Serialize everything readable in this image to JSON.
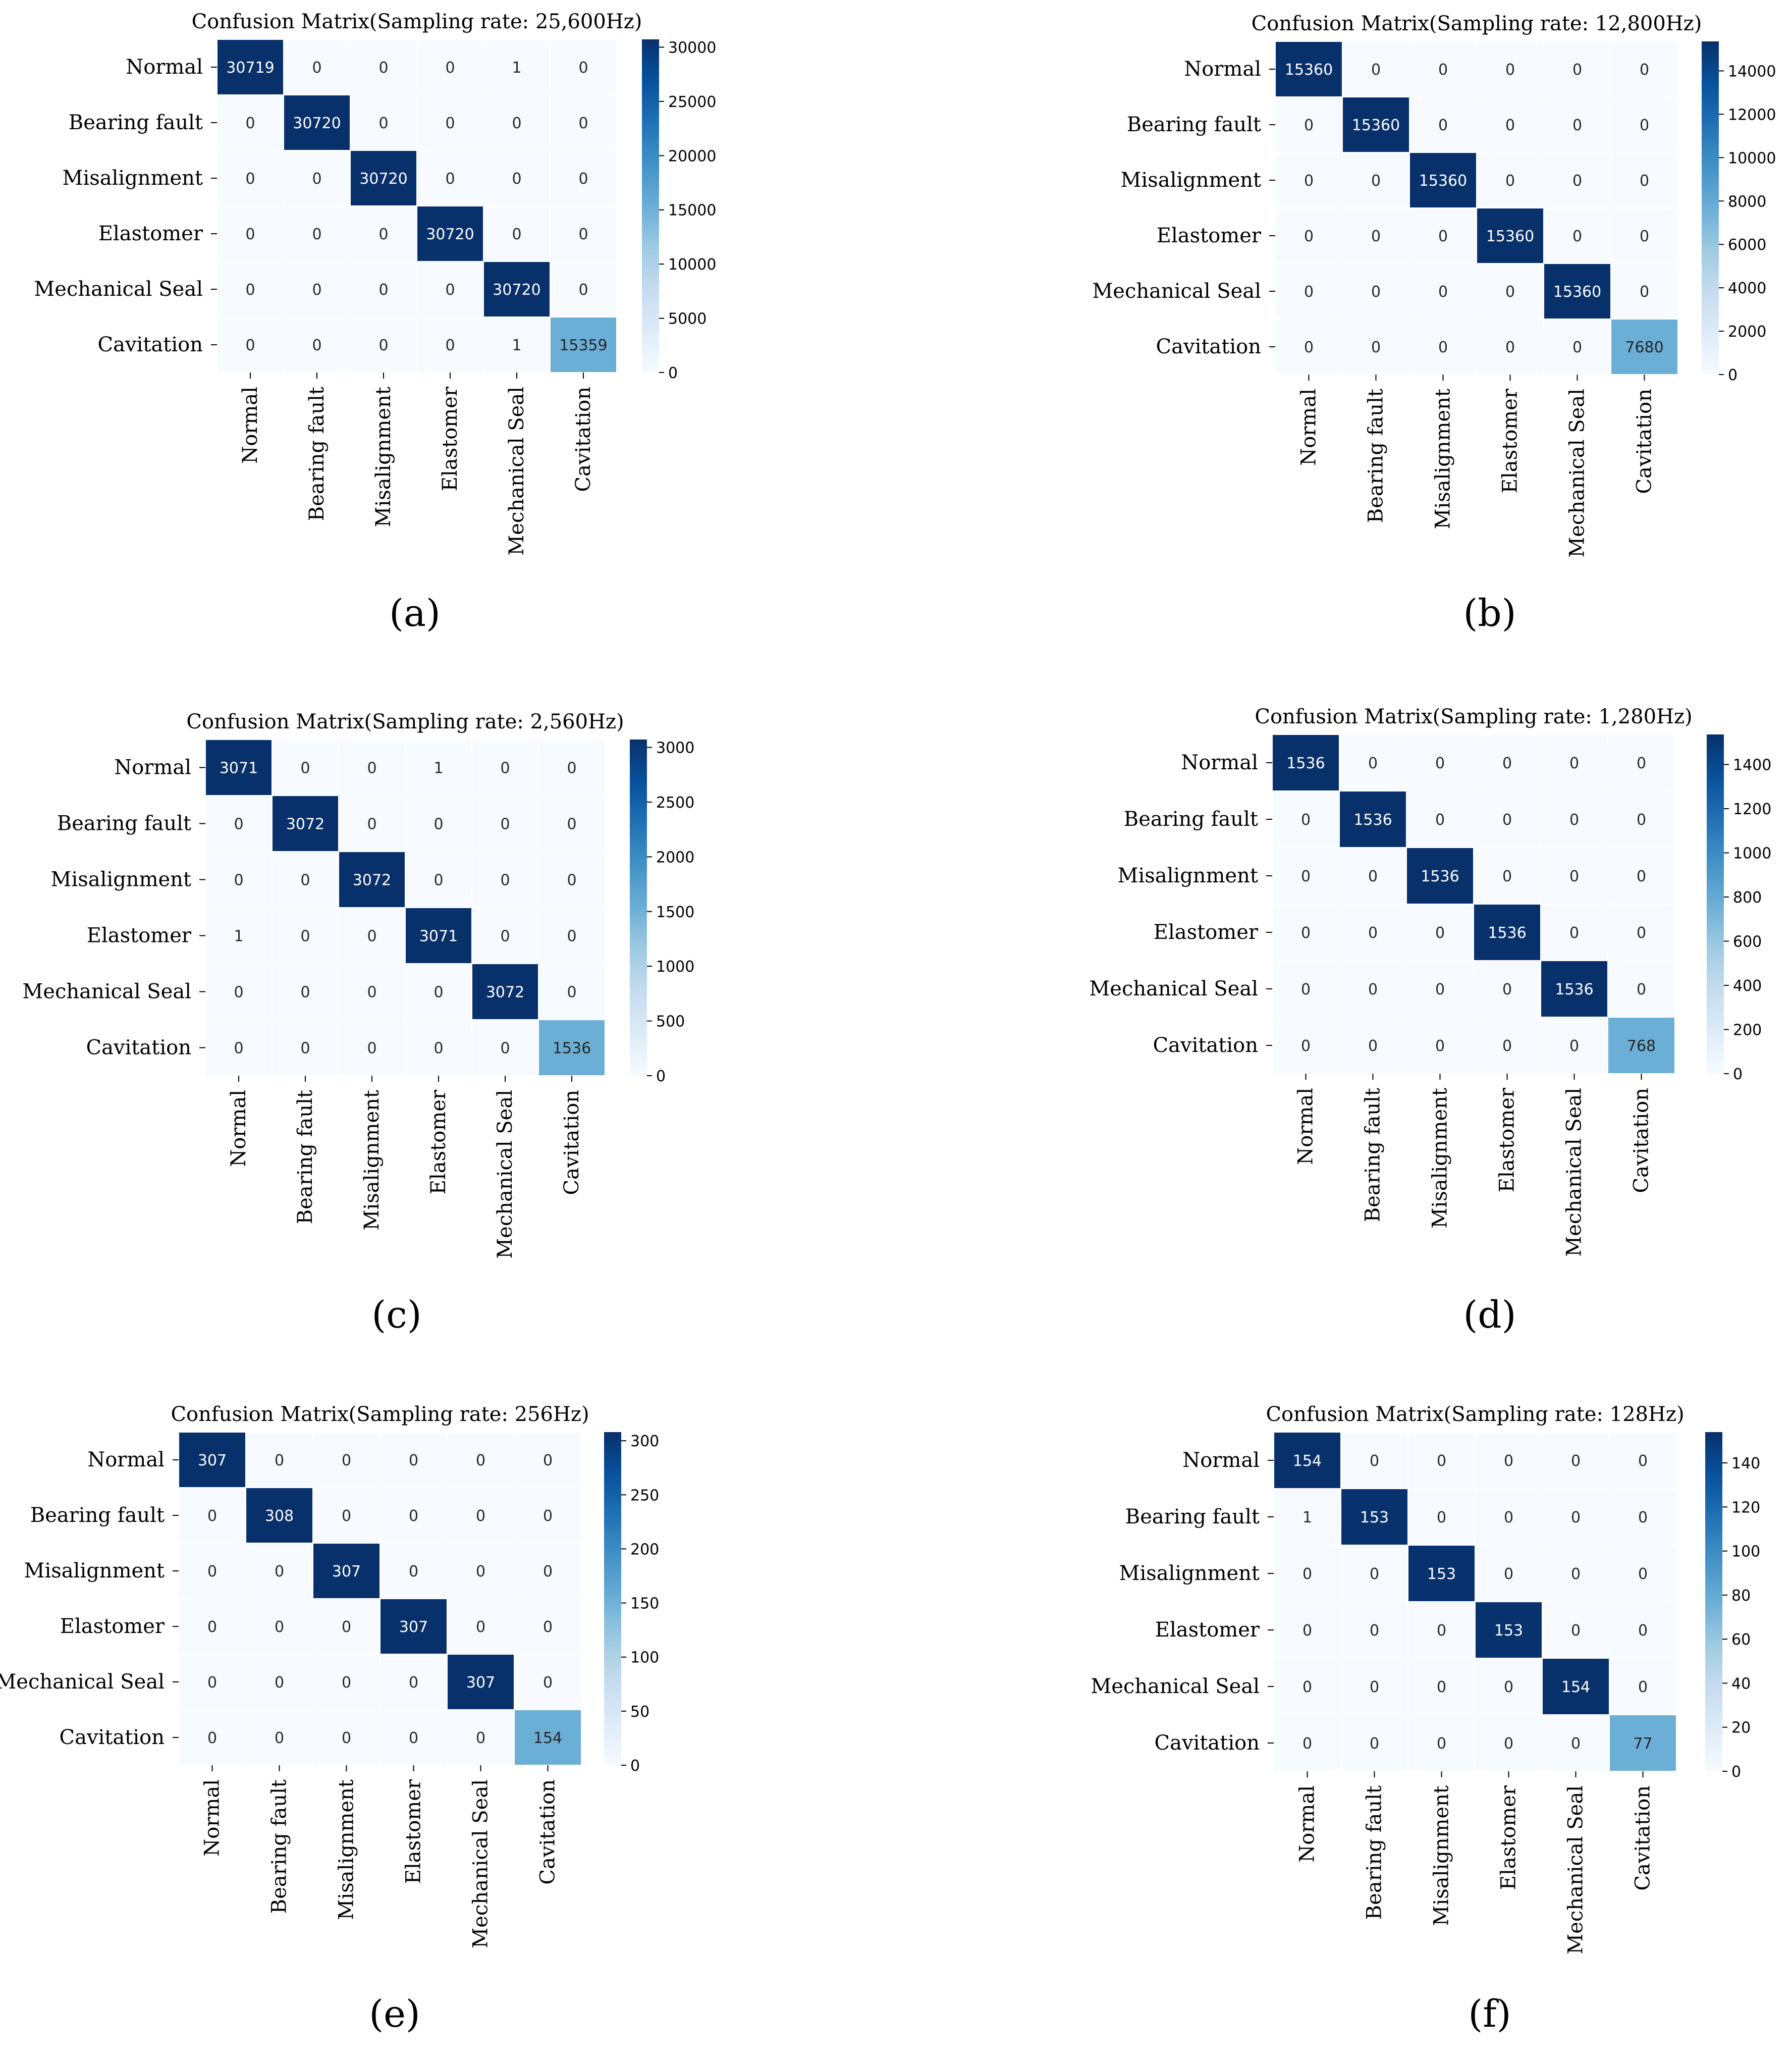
{
  "figure_panel_labels": [
    "(a)",
    "(b)",
    "(c)",
    "(d)",
    "(e)",
    "(f)"
  ],
  "chart_data": [
    {
      "type": "heatmap",
      "panel": "a",
      "title": "Confusion Matrix(Sampling rate: 25,600Hz)",
      "row_labels": [
        "Normal",
        "Bearing fault",
        "Misalignment",
        "Elastomer",
        "Mechanical Seal",
        "Cavitation"
      ],
      "col_labels": [
        "Normal",
        "Bearing fault",
        "Misalignment",
        "Elastomer",
        "Mechanical Seal",
        "Cavitation"
      ],
      "values": [
        [
          30719,
          0,
          0,
          0,
          1,
          0
        ],
        [
          0,
          30720,
          0,
          0,
          0,
          0
        ],
        [
          0,
          0,
          30720,
          0,
          0,
          0
        ],
        [
          0,
          0,
          0,
          30720,
          0,
          0
        ],
        [
          0,
          0,
          0,
          0,
          30720,
          0
        ],
        [
          0,
          0,
          0,
          0,
          1,
          15359
        ]
      ],
      "colorbar": {
        "min": 0,
        "max": 30720,
        "ticks": [
          0,
          5000,
          10000,
          15000,
          20000,
          25000,
          30000
        ]
      },
      "colormap": "Blues"
    },
    {
      "type": "heatmap",
      "panel": "b",
      "title": "Confusion Matrix(Sampling rate: 12,800Hz)",
      "row_labels": [
        "Normal",
        "Bearing fault",
        "Misalignment",
        "Elastomer",
        "Mechanical Seal",
        "Cavitation"
      ],
      "col_labels": [
        "Normal",
        "Bearing fault",
        "Misalignment",
        "Elastomer",
        "Mechanical Seal",
        "Cavitation"
      ],
      "values": [
        [
          15360,
          0,
          0,
          0,
          0,
          0
        ],
        [
          0,
          15360,
          0,
          0,
          0,
          0
        ],
        [
          0,
          0,
          15360,
          0,
          0,
          0
        ],
        [
          0,
          0,
          0,
          15360,
          0,
          0
        ],
        [
          0,
          0,
          0,
          0,
          15360,
          0
        ],
        [
          0,
          0,
          0,
          0,
          0,
          7680
        ]
      ],
      "colorbar": {
        "min": 0,
        "max": 15360,
        "ticks": [
          0,
          2000,
          4000,
          6000,
          8000,
          10000,
          12000,
          14000
        ]
      },
      "colormap": "Blues"
    },
    {
      "type": "heatmap",
      "panel": "c",
      "title": "Confusion Matrix(Sampling rate: 2,560Hz)",
      "row_labels": [
        "Normal",
        "Bearing fault",
        "Misalignment",
        "Elastomer",
        "Mechanical Seal",
        "Cavitation"
      ],
      "col_labels": [
        "Normal",
        "Bearing fault",
        "Misalignment",
        "Elastomer",
        "Mechanical Seal",
        "Cavitation"
      ],
      "values": [
        [
          3071,
          0,
          0,
          1,
          0,
          0
        ],
        [
          0,
          3072,
          0,
          0,
          0,
          0
        ],
        [
          0,
          0,
          3072,
          0,
          0,
          0
        ],
        [
          1,
          0,
          0,
          3071,
          0,
          0
        ],
        [
          0,
          0,
          0,
          0,
          3072,
          0
        ],
        [
          0,
          0,
          0,
          0,
          0,
          1536
        ]
      ],
      "colorbar": {
        "min": 0,
        "max": 3072,
        "ticks": [
          0,
          500,
          1000,
          1500,
          2000,
          2500,
          3000
        ]
      },
      "colormap": "Blues"
    },
    {
      "type": "heatmap",
      "panel": "d",
      "title": "Confusion Matrix(Sampling rate: 1,280Hz)",
      "row_labels": [
        "Normal",
        "Bearing fault",
        "Misalignment",
        "Elastomer",
        "Mechanical Seal",
        "Cavitation"
      ],
      "col_labels": [
        "Normal",
        "Bearing fault",
        "Misalignment",
        "Elastomer",
        "Mechanical Seal",
        "Cavitation"
      ],
      "values": [
        [
          1536,
          0,
          0,
          0,
          0,
          0
        ],
        [
          0,
          1536,
          0,
          0,
          0,
          0
        ],
        [
          0,
          0,
          1536,
          0,
          0,
          0
        ],
        [
          0,
          0,
          0,
          1536,
          0,
          0
        ],
        [
          0,
          0,
          0,
          0,
          1536,
          0
        ],
        [
          0,
          0,
          0,
          0,
          0,
          768
        ]
      ],
      "colorbar": {
        "min": 0,
        "max": 1536,
        "ticks": [
          0,
          200,
          400,
          600,
          800,
          1000,
          1200,
          1400
        ]
      },
      "colormap": "Blues"
    },
    {
      "type": "heatmap",
      "panel": "e",
      "title": "Confusion Matrix(Sampling rate: 256Hz)",
      "row_labels": [
        "Normal",
        "Bearing fault",
        "Misalignment",
        "Elastomer",
        "Mechanical Seal",
        "Cavitation"
      ],
      "col_labels": [
        "Normal",
        "Bearing fault",
        "Misalignment",
        "Elastomer",
        "Mechanical Seal",
        "Cavitation"
      ],
      "values": [
        [
          307,
          0,
          0,
          0,
          0,
          0
        ],
        [
          0,
          308,
          0,
          0,
          0,
          0
        ],
        [
          0,
          0,
          307,
          0,
          0,
          0
        ],
        [
          0,
          0,
          0,
          307,
          0,
          0
        ],
        [
          0,
          0,
          0,
          0,
          307,
          0
        ],
        [
          0,
          0,
          0,
          0,
          0,
          154
        ]
      ],
      "colorbar": {
        "min": 0,
        "max": 308,
        "ticks": [
          0,
          50,
          100,
          150,
          200,
          250,
          300
        ]
      },
      "colormap": "Blues"
    },
    {
      "type": "heatmap",
      "panel": "f",
      "title": "Confusion Matrix(Sampling rate: 128Hz)",
      "row_labels": [
        "Normal",
        "Bearing fault",
        "Misalignment",
        "Elastomer",
        "Mechanical Seal",
        "Cavitation"
      ],
      "col_labels": [
        "Normal",
        "Bearing fault",
        "Misalignment",
        "Elastomer",
        "Mechanical Seal",
        "Cavitation"
      ],
      "values": [
        [
          154,
          0,
          0,
          0,
          0,
          0
        ],
        [
          1,
          153,
          0,
          0,
          0,
          0
        ],
        [
          0,
          0,
          153,
          0,
          0,
          0
        ],
        [
          0,
          0,
          0,
          153,
          0,
          0
        ],
        [
          0,
          0,
          0,
          0,
          154,
          0
        ],
        [
          0,
          0,
          0,
          0,
          0,
          77
        ]
      ],
      "colorbar": {
        "min": 0,
        "max": 154,
        "ticks": [
          0,
          20,
          40,
          60,
          80,
          100,
          120,
          140
        ]
      },
      "colormap": "Blues"
    }
  ]
}
